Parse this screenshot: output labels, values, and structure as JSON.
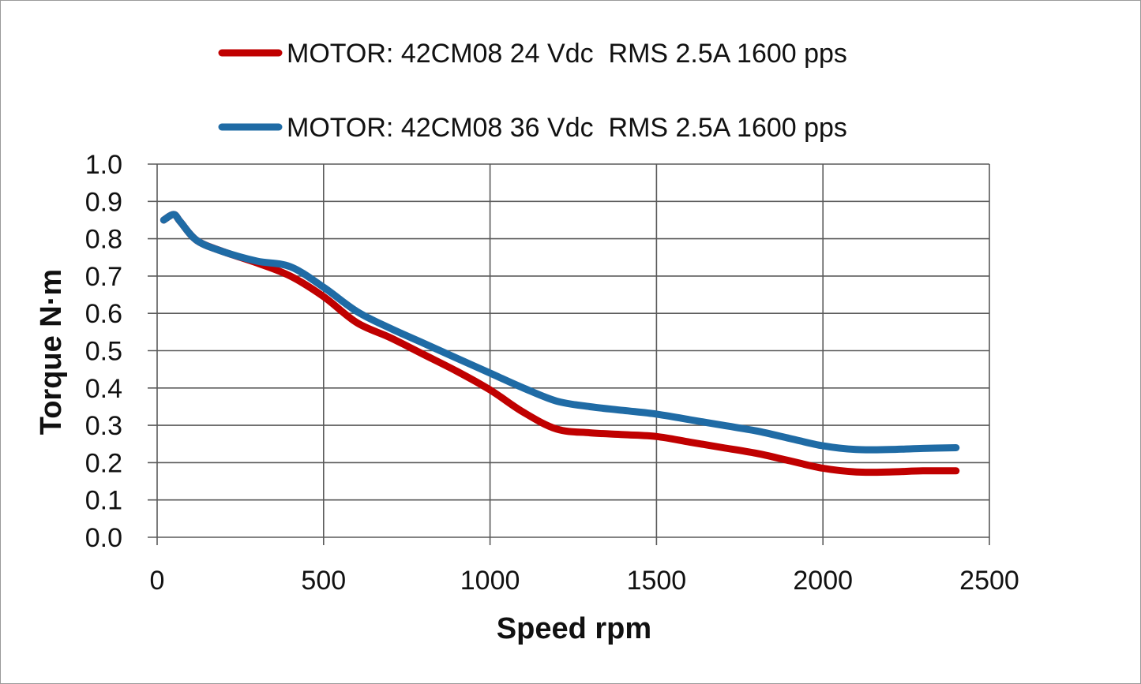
{
  "chart_data": {
    "type": "line",
    "title": "",
    "xlabel": "Speed rpm",
    "ylabel": "Torque N·m",
    "xlim": [
      0,
      2500
    ],
    "ylim": [
      0.0,
      1.0
    ],
    "xticks": [
      0,
      500,
      1000,
      1500,
      2000,
      2500
    ],
    "xtick_labels": [
      "0",
      "500",
      "1000",
      "1500",
      "2000",
      "2500"
    ],
    "yticks": [
      0.0,
      0.1,
      0.2,
      0.3,
      0.4,
      0.5,
      0.6,
      0.7,
      0.8,
      0.9,
      1.0
    ],
    "ytick_labels": [
      "0.0",
      "0.1",
      "0.2",
      "0.3",
      "0.4",
      "0.5",
      "0.6",
      "0.7",
      "0.8",
      "0.9",
      "1.0"
    ],
    "grid": true,
    "legend_position": "top",
    "series": [
      {
        "name": "MOTOR: 42CM08 24 Vdc  RMS 2.5A 1600 pps",
        "color": "#c00000",
        "x": [
          20,
          50,
          70,
          120,
          200,
          300,
          400,
          500,
          600,
          700,
          800,
          900,
          1000,
          1100,
          1200,
          1300,
          1400,
          1500,
          1600,
          1700,
          1800,
          1900,
          2000,
          2100,
          2200,
          2300,
          2400
        ],
        "y": [
          0.85,
          0.865,
          0.845,
          0.795,
          0.765,
          0.735,
          0.7,
          0.645,
          0.575,
          0.535,
          0.49,
          0.445,
          0.395,
          0.335,
          0.29,
          0.28,
          0.275,
          0.27,
          0.255,
          0.24,
          0.225,
          0.205,
          0.185,
          0.175,
          0.175,
          0.178,
          0.178
        ]
      },
      {
        "name": "MOTOR: 42CM08 36 Vdc  RMS 2.5A 1600 pps",
        "color": "#1f6ba5",
        "x": [
          20,
          50,
          70,
          120,
          200,
          300,
          400,
          500,
          600,
          700,
          800,
          900,
          1000,
          1100,
          1200,
          1300,
          1400,
          1500,
          1600,
          1700,
          1800,
          1900,
          2000,
          2100,
          2200,
          2300,
          2400
        ],
        "y": [
          0.85,
          0.865,
          0.845,
          0.795,
          0.765,
          0.74,
          0.725,
          0.67,
          0.605,
          0.56,
          0.52,
          0.48,
          0.44,
          0.4,
          0.365,
          0.35,
          0.34,
          0.33,
          0.315,
          0.3,
          0.285,
          0.265,
          0.245,
          0.235,
          0.235,
          0.238,
          0.24
        ]
      }
    ]
  }
}
